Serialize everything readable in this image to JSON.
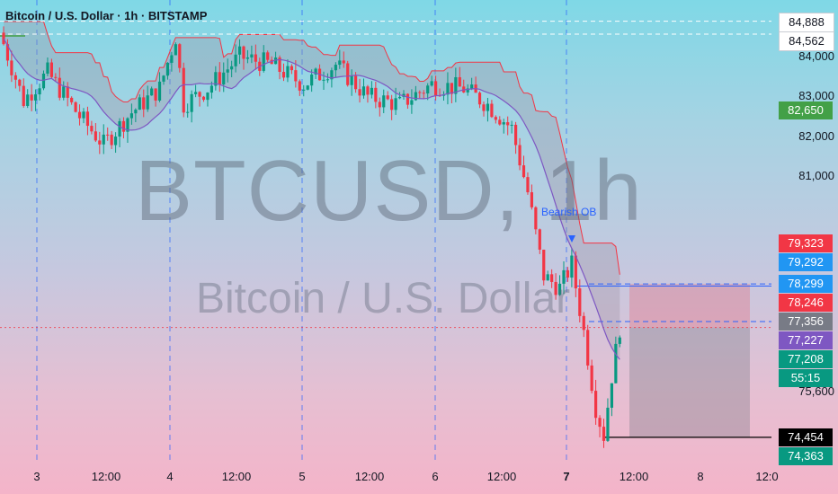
{
  "chart_data": {
    "type": "candlestick",
    "title": "Bitcoin / U.S. Dollar · 1h · BITSTAMP",
    "symbol": "BTCUSD",
    "interval": "1h",
    "watermark_primary": "BTCUSD, 1h",
    "watermark_secondary": "Bitcoin / U.S. Dollar",
    "ylim": [
      73900,
      85300
    ],
    "y_ticks": [
      "84,000",
      "83,000",
      "82,000",
      "81,000",
      "75,600"
    ],
    "x_ticks": [
      {
        "label": "3",
        "bold": false
      },
      {
        "label": "12:00",
        "bold": false
      },
      {
        "label": "4",
        "bold": false
      },
      {
        "label": "12:00",
        "bold": false
      },
      {
        "label": "5",
        "bold": false
      },
      {
        "label": "12:00",
        "bold": false
      },
      {
        "label": "6",
        "bold": false
      },
      {
        "label": "12:00",
        "bold": false
      },
      {
        "label": "7",
        "bold": true
      },
      {
        "label": "12:00",
        "bold": false
      },
      {
        "label": "8",
        "bold": false
      },
      {
        "label": "12:0",
        "bold": false
      }
    ],
    "price_tags": [
      {
        "label": "84,888",
        "value": 84888,
        "bg": "#ffffff",
        "fg": "#131722"
      },
      {
        "label": "84,562",
        "value": 84562,
        "bg": "#ffffff",
        "fg": "#131722"
      },
      {
        "label": "82,650",
        "value": 82650,
        "bg": "#43a047",
        "fg": "#ffffff"
      },
      {
        "label": "79,323",
        "value": 79323,
        "bg": "#f23645",
        "fg": "#ffffff"
      },
      {
        "label": "79,292",
        "value": 79292,
        "bg": "#2196f3",
        "fg": "#ffffff"
      },
      {
        "label": "78,299",
        "value": 78299,
        "bg": "#2196f3",
        "fg": "#ffffff"
      },
      {
        "label": "78,246",
        "value": 78246,
        "bg": "#f23645",
        "fg": "#ffffff"
      },
      {
        "label": "77,356",
        "value": 77356,
        "bg": "#787b86",
        "fg": "#ffffff"
      },
      {
        "label": "77,227",
        "value": 77227,
        "bg": "#7e57c2",
        "fg": "#ffffff"
      },
      {
        "label": "77,208",
        "value": 77208,
        "bg": "#089981",
        "fg": "#ffffff"
      },
      {
        "label": "55:15",
        "value": null,
        "bg": "#089981",
        "fg": "#ffffff"
      },
      {
        "label": "74,454",
        "value": 74454,
        "bg": "#000000",
        "fg": "#ffffff"
      },
      {
        "label": "74,363",
        "value": 74363,
        "bg": "#089981",
        "fg": "#ffffff"
      }
    ],
    "annotations": [
      {
        "text": "Bearish OB"
      }
    ],
    "levels": {
      "upper_dashed_1": 84888,
      "upper_dashed_2": 84562,
      "last_price": 77208
    },
    "position": {
      "entry": 77208,
      "stop": 78299,
      "target": 74454,
      "side": "short"
    },
    "colors": {
      "up": "#089981",
      "down": "#f23645",
      "ma": "#7e57c2",
      "band": "#f23645",
      "vgrid": "#2962ff"
    },
    "candles": {
      "note": "hourly OHLC approximated",
      "count": 155,
      "anchors": [
        {
          "i": 0,
          "price": 84600
        },
        {
          "i": 6,
          "price": 82900
        },
        {
          "i": 12,
          "price": 83600
        },
        {
          "i": 20,
          "price": 82500
        },
        {
          "i": 26,
          "price": 81800
        },
        {
          "i": 33,
          "price": 82600
        },
        {
          "i": 40,
          "price": 83200
        },
        {
          "i": 44,
          "price": 84500
        },
        {
          "i": 46,
          "price": 82800
        },
        {
          "i": 52,
          "price": 83200
        },
        {
          "i": 60,
          "price": 84000
        },
        {
          "i": 68,
          "price": 83800
        },
        {
          "i": 76,
          "price": 83300
        },
        {
          "i": 84,
          "price": 83800
        },
        {
          "i": 92,
          "price": 83000
        },
        {
          "i": 100,
          "price": 82800
        },
        {
          "i": 108,
          "price": 83300
        },
        {
          "i": 116,
          "price": 83200
        },
        {
          "i": 122,
          "price": 82800
        },
        {
          "i": 128,
          "price": 82200
        },
        {
          "i": 132,
          "price": 80600
        },
        {
          "i": 136,
          "price": 78500
        },
        {
          "i": 140,
          "price": 78200
        },
        {
          "i": 143,
          "price": 78800
        },
        {
          "i": 146,
          "price": 77100
        },
        {
          "i": 149,
          "price": 75200
        },
        {
          "i": 151,
          "price": 74500
        },
        {
          "i": 153,
          "price": 76000
        },
        {
          "i": 155,
          "price": 77208
        }
      ]
    }
  }
}
